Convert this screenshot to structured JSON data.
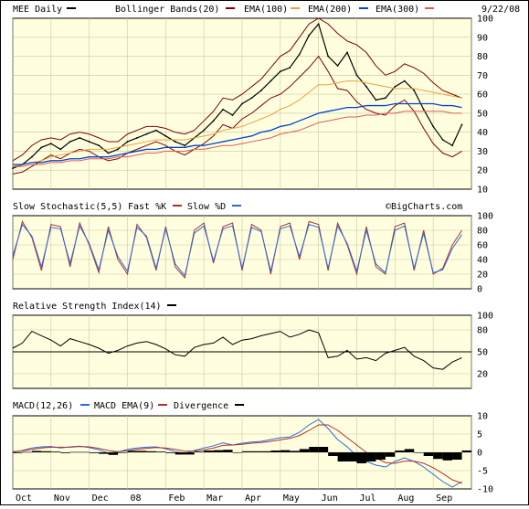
{
  "header": {
    "symbol_label": "MEE Daily",
    "date": "9/22/08",
    "indicators": [
      {
        "label": "Bollinger Bands(20)",
        "color": "#800000"
      },
      {
        "label": "EMA(100)",
        "color": "#e8a33c"
      },
      {
        "label": "EMA(200)",
        "color": "#0044cc"
      },
      {
        "label": "EMA(300)",
        "color": "#e05a5a"
      }
    ]
  },
  "watermark": "©BigCharts.com",
  "colors": {
    "panel_bg": "#ffffe0",
    "grid": "#c8c8a0",
    "price": "#000000",
    "bollinger": "#800000",
    "ema100": "#e8a33c",
    "ema200": "#0044cc",
    "ema300": "#e05a5a",
    "stoch_k": "#b03030",
    "stoch_d": "#2a6bd6",
    "macd": "#2a6bd6",
    "macd_ema": "#b03030",
    "divergence": "#000000"
  },
  "x_axis": {
    "labels": [
      "Oct",
      "Nov",
      "Dec",
      "08",
      "Feb",
      "Mar",
      "Apr",
      "May",
      "Jun",
      "Jul",
      "Aug",
      "Sep"
    ]
  },
  "chart_data": [
    {
      "id": "price",
      "type": "line",
      "title": "MEE Daily",
      "x": [
        0,
        0.25,
        0.5,
        0.75,
        1,
        1.25,
        1.5,
        1.75,
        2,
        2.25,
        2.5,
        2.75,
        3,
        3.25,
        3.5,
        3.75,
        4,
        4.25,
        4.5,
        4.75,
        5,
        5.25,
        5.5,
        5.75,
        6,
        6.25,
        6.5,
        6.75,
        7,
        7.25,
        7.5,
        7.75,
        8,
        8.25,
        8.5,
        8.75,
        9,
        9.25,
        9.5,
        9.75,
        10,
        10.25,
        10.5,
        10.75,
        11,
        11.25,
        11.5,
        11.75
      ],
      "ylim": [
        10,
        100
      ],
      "yticks": [
        10,
        20,
        30,
        40,
        50,
        60,
        70,
        80,
        90,
        100
      ],
      "series": [
        {
          "key": "close",
          "values": [
            21,
            23,
            27,
            32,
            34,
            31,
            35,
            37,
            35,
            33,
            29,
            31,
            35,
            37,
            39,
            41,
            38,
            35,
            33,
            37,
            41,
            46,
            52,
            49,
            55,
            58,
            62,
            67,
            72,
            74,
            81,
            91,
            97,
            80,
            75,
            82,
            70,
            64,
            57,
            58,
            64,
            67,
            62,
            52,
            43,
            36,
            33,
            44
          ]
        },
        {
          "key": "bb_upper",
          "values": [
            25,
            28,
            33,
            36,
            37,
            36,
            39,
            40,
            39,
            37,
            35,
            35,
            39,
            41,
            43,
            43,
            42,
            40,
            39,
            41,
            46,
            51,
            58,
            57,
            60,
            64,
            68,
            74,
            80,
            83,
            90,
            97,
            100,
            97,
            92,
            88,
            86,
            82,
            75,
            70,
            72,
            76,
            74,
            71,
            66,
            62,
            60,
            58
          ]
        },
        {
          "key": "bb_lower",
          "values": [
            18,
            19,
            22,
            25,
            28,
            26,
            29,
            31,
            30,
            27,
            25,
            26,
            29,
            31,
            33,
            35,
            33,
            30,
            28,
            31,
            34,
            38,
            44,
            42,
            47,
            50,
            54,
            58,
            60,
            64,
            69,
            74,
            80,
            72,
            63,
            62,
            56,
            52,
            50,
            49,
            54,
            57,
            51,
            42,
            34,
            29,
            27,
            30
          ]
        },
        {
          "key": "ema100",
          "values": [
            22,
            23,
            24,
            25,
            27,
            28,
            29,
            30,
            31,
            31,
            31,
            32,
            33,
            34,
            35,
            36,
            36,
            36,
            36,
            37,
            38,
            39,
            41,
            42,
            43,
            45,
            47,
            49,
            52,
            54,
            57,
            61,
            65,
            65,
            66,
            67,
            67,
            66,
            65,
            64,
            63,
            63,
            63,
            62,
            61,
            60,
            59,
            58
          ]
        },
        {
          "key": "ema200",
          "values": [
            23,
            23,
            24,
            24,
            25,
            25,
            26,
            26,
            27,
            27,
            27,
            28,
            29,
            30,
            31,
            31,
            32,
            32,
            32,
            33,
            33,
            34,
            35,
            36,
            37,
            38,
            40,
            41,
            43,
            44,
            46,
            48,
            50,
            51,
            52,
            53,
            53,
            54,
            54,
            54,
            55,
            55,
            55,
            55,
            55,
            54,
            54,
            53
          ]
        },
        {
          "key": "ema300",
          "values": [
            22,
            22,
            23,
            23,
            24,
            24,
            25,
            25,
            26,
            26,
            26,
            27,
            27,
            28,
            29,
            29,
            30,
            30,
            30,
            31,
            31,
            32,
            33,
            33,
            34,
            35,
            36,
            37,
            39,
            40,
            41,
            43,
            45,
            46,
            47,
            48,
            48,
            49,
            49,
            50,
            50,
            51,
            51,
            51,
            51,
            51,
            50,
            50
          ]
        }
      ]
    },
    {
      "id": "stochastic",
      "type": "line",
      "title": "Slow Stochastic(5,5)",
      "legend": [
        "Fast %K",
        "Slow %D"
      ],
      "x": [
        0,
        0.25,
        0.5,
        0.75,
        1,
        1.25,
        1.5,
        1.75,
        2,
        2.25,
        2.5,
        2.75,
        3,
        3.25,
        3.5,
        3.75,
        4,
        4.25,
        4.5,
        4.75,
        5,
        5.25,
        5.5,
        5.75,
        6,
        6.25,
        6.5,
        6.75,
        7,
        7.25,
        7.5,
        7.75,
        8,
        8.25,
        8.5,
        8.75,
        9,
        9.25,
        9.5,
        9.75,
        10,
        10.25,
        10.5,
        10.75,
        11,
        11.25,
        11.5,
        11.75
      ],
      "ylim": [
        0,
        100
      ],
      "yticks": [
        0,
        20,
        40,
        60,
        80,
        100
      ],
      "series": [
        {
          "key": "k",
          "values": [
            40,
            92,
            70,
            25,
            88,
            85,
            30,
            90,
            60,
            22,
            85,
            40,
            20,
            88,
            70,
            25,
            85,
            30,
            15,
            80,
            90,
            35,
            85,
            90,
            25,
            88,
            80,
            20,
            85,
            90,
            40,
            92,
            88,
            25,
            90,
            60,
            20,
            85,
            30,
            20,
            85,
            90,
            25,
            80,
            20,
            28,
            60,
            80
          ]
        },
        {
          "key": "d",
          "values": [
            45,
            88,
            72,
            30,
            84,
            82,
            35,
            86,
            62,
            26,
            80,
            44,
            24,
            84,
            72,
            28,
            82,
            34,
            18,
            76,
            86,
            38,
            82,
            86,
            28,
            84,
            78,
            24,
            82,
            86,
            44,
            88,
            84,
            28,
            86,
            62,
            24,
            80,
            34,
            22,
            80,
            86,
            28,
            76,
            22,
            26,
            55,
            74
          ]
        }
      ]
    },
    {
      "id": "rsi",
      "type": "line",
      "title": "Relative Strength Index(14)",
      "x": [
        0,
        0.25,
        0.5,
        0.75,
        1,
        1.25,
        1.5,
        1.75,
        2,
        2.25,
        2.5,
        2.75,
        3,
        3.25,
        3.5,
        3.75,
        4,
        4.25,
        4.5,
        4.75,
        5,
        5.25,
        5.5,
        5.75,
        6,
        6.25,
        6.5,
        6.75,
        7,
        7.25,
        7.5,
        7.75,
        8,
        8.25,
        8.5,
        8.75,
        9,
        9.25,
        9.5,
        9.75,
        10,
        10.25,
        10.5,
        10.75,
        11,
        11.25,
        11.5,
        11.75
      ],
      "ylim": [
        0,
        100
      ],
      "yticks": [
        20,
        50,
        80,
        100
      ],
      "reference_line": 50,
      "series": [
        {
          "key": "rsi",
          "values": [
            55,
            62,
            78,
            72,
            66,
            58,
            68,
            64,
            60,
            55,
            48,
            52,
            58,
            62,
            64,
            60,
            54,
            46,
            44,
            56,
            60,
            62,
            70,
            60,
            66,
            68,
            72,
            75,
            78,
            70,
            74,
            80,
            76,
            42,
            44,
            52,
            40,
            42,
            38,
            48,
            52,
            56,
            44,
            38,
            28,
            26,
            36,
            42
          ]
        }
      ]
    },
    {
      "id": "macd",
      "type": "line",
      "title": "MACD(12,26)",
      "legend": [
        "MACD EMA(9)",
        "Divergence"
      ],
      "x": [
        0,
        0.25,
        0.5,
        0.75,
        1,
        1.25,
        1.5,
        1.75,
        2,
        2.25,
        2.5,
        2.75,
        3,
        3.25,
        3.5,
        3.75,
        4,
        4.25,
        4.5,
        4.75,
        5,
        5.25,
        5.5,
        5.75,
        6,
        6.25,
        6.5,
        6.75,
        7,
        7.25,
        7.5,
        7.75,
        8,
        8.25,
        8.5,
        8.75,
        9,
        9.25,
        9.5,
        9.75,
        10,
        10.25,
        10.5,
        10.75,
        11,
        11.25,
        11.5,
        11.75
      ],
      "ylim": [
        -10,
        10
      ],
      "yticks": [
        -10,
        -5,
        0,
        5,
        10
      ],
      "series": [
        {
          "key": "macd",
          "values": [
            0,
            0.5,
            1.2,
            1.5,
            1.6,
            1.2,
            1.5,
            1.7,
            1.3,
            0.7,
            -0.2,
            0.1,
            0.8,
            1.2,
            1.4,
            1.5,
            1,
            0.2,
            -0.3,
            0.5,
            1.2,
            1.8,
            2.6,
            2,
            2.5,
            2.8,
            3,
            3.5,
            4,
            4.2,
            5.5,
            7.5,
            9,
            6.5,
            3.5,
            1.5,
            -1,
            -2.5,
            -3.5,
            -4,
            -2.5,
            -1.5,
            -2.5,
            -4,
            -6,
            -8,
            -9.5,
            -8
          ]
        },
        {
          "key": "signal",
          "values": [
            0.2,
            0.4,
            0.8,
            1.2,
            1.4,
            1.4,
            1.4,
            1.6,
            1.5,
            1.1,
            0.5,
            0.2,
            0.4,
            0.8,
            1.1,
            1.3,
            1.2,
            0.8,
            0.3,
            0.3,
            0.7,
            1.2,
            1.9,
            2,
            2.2,
            2.5,
            2.7,
            3,
            3.4,
            3.8,
            4.6,
            6,
            7.5,
            7.5,
            6,
            4,
            2,
            0,
            -1.5,
            -2.8,
            -3,
            -2.4,
            -2.4,
            -3,
            -4.2,
            -5.8,
            -7.5,
            -8.5
          ]
        },
        {
          "key": "divergence",
          "values": [
            -0.2,
            0.1,
            0.4,
            0.3,
            0.2,
            -0.2,
            0.1,
            0.1,
            -0.2,
            -0.4,
            -0.7,
            -0.1,
            0.4,
            0.4,
            0.3,
            0.2,
            -0.2,
            -0.6,
            -0.6,
            0.2,
            0.5,
            0.6,
            0.7,
            0,
            0.3,
            0.3,
            0.3,
            0.5,
            0.6,
            0.4,
            0.9,
            1.5,
            1.5,
            -1,
            -2.5,
            -2.5,
            -3,
            -2.5,
            -2,
            -1.2,
            0.5,
            0.9,
            -0.1,
            -1,
            -1.8,
            -2.2,
            -2,
            0.5
          ]
        }
      ]
    }
  ]
}
